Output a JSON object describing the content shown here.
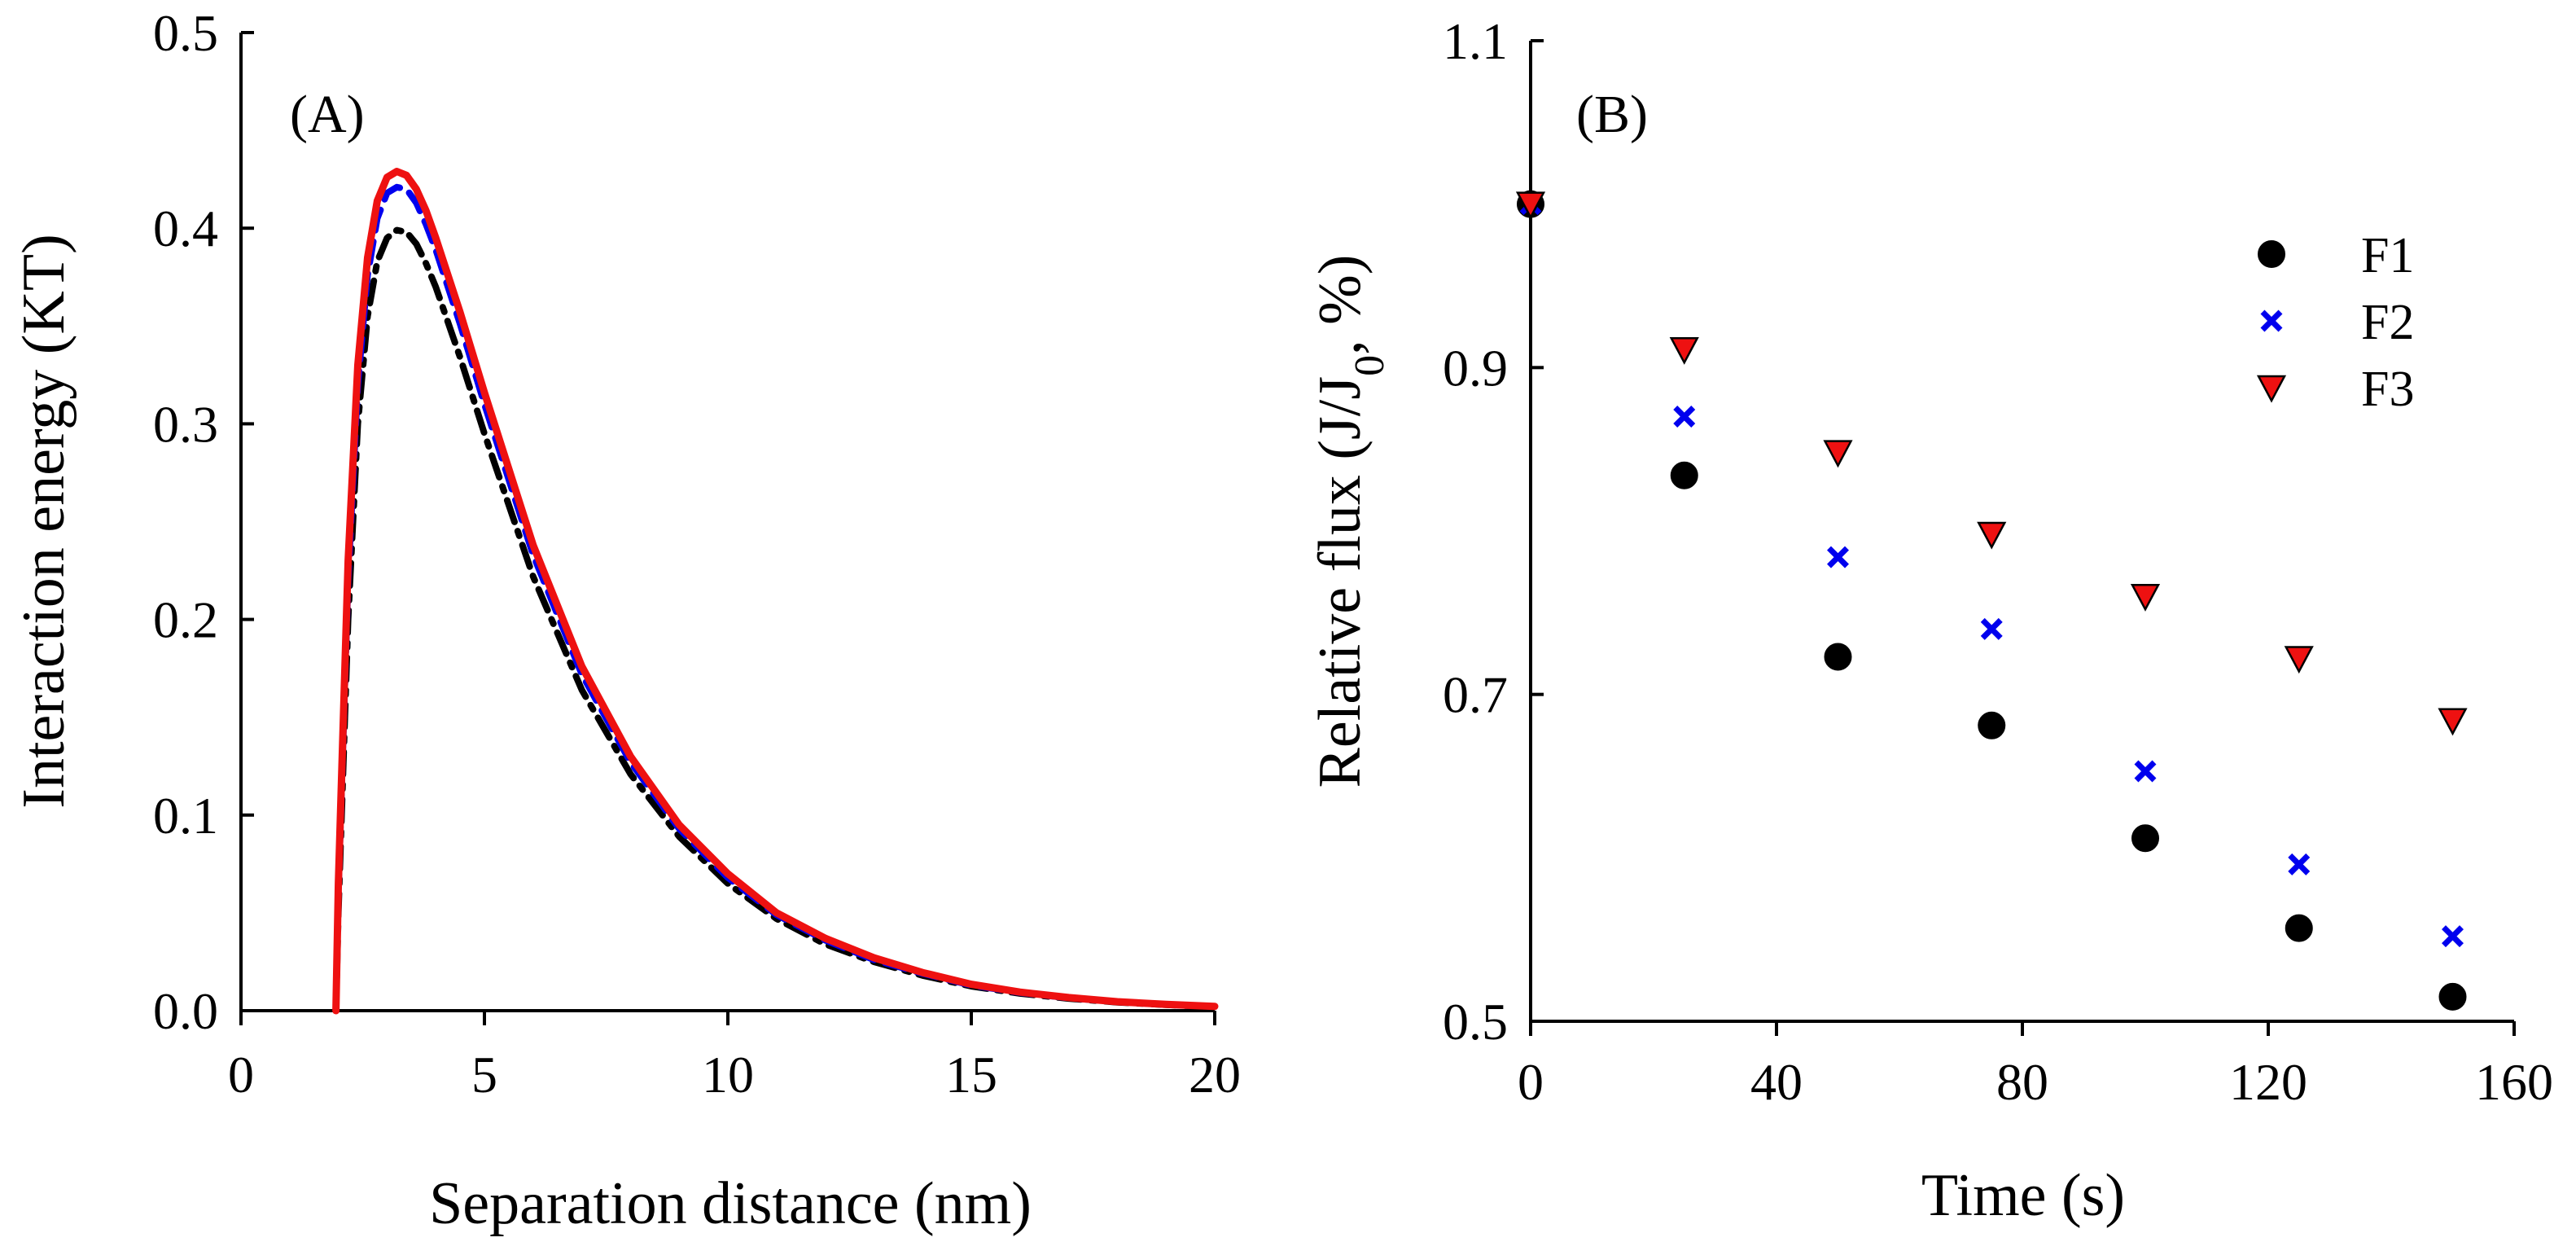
{
  "colors": {
    "F1": "#000000",
    "F2": "#0000ee",
    "F3": "#ee1111",
    "axis": "#000000"
  },
  "chart_data": [
    {
      "type": "line",
      "panel_label": "(A)",
      "xlabel": "Separation distance (nm)",
      "ylabel": "Interaction energy (KT)",
      "xlim": [
        0,
        20
      ],
      "ylim": [
        0,
        0.5
      ],
      "x_ticks": [
        "0",
        "5",
        "10",
        "15",
        "20"
      ],
      "y_ticks": [
        "0.0",
        "0.1",
        "0.2",
        "0.3",
        "0.4",
        "0.5"
      ],
      "grid": false,
      "legend": null,
      "series": [
        {
          "style": "dash-dot",
          "color_key": "F1",
          "x": [
            1.95,
            2.0,
            2.2,
            2.4,
            2.6,
            2.8,
            3.0,
            3.2,
            3.4,
            3.6,
            3.8,
            4.0,
            4.5,
            5.0,
            6.0,
            7.0,
            8.0,
            9.0,
            10.0,
            11.0,
            12.0,
            13.0,
            14.0,
            15.0,
            16.0,
            17.0,
            18.0,
            19.0,
            20.0
          ],
          "y": [
            0.0,
            0.05,
            0.2,
            0.3,
            0.355,
            0.383,
            0.395,
            0.399,
            0.398,
            0.392,
            0.382,
            0.37,
            0.334,
            0.295,
            0.222,
            0.164,
            0.121,
            0.089,
            0.065,
            0.047,
            0.034,
            0.025,
            0.018,
            0.0125,
            0.0088,
            0.0062,
            0.0043,
            0.003,
            0.002
          ]
        },
        {
          "style": "dashed",
          "color_key": "F2",
          "x": [
            1.95,
            2.0,
            2.2,
            2.4,
            2.6,
            2.8,
            3.0,
            3.2,
            3.4,
            3.6,
            3.8,
            4.0,
            4.5,
            5.0,
            6.0,
            7.0,
            8.0,
            9.0,
            10.0,
            11.0,
            12.0,
            13.0,
            14.0,
            15.0,
            16.0,
            17.0,
            18.0,
            19.0,
            20.0
          ],
          "y": [
            0.0,
            0.06,
            0.22,
            0.32,
            0.376,
            0.405,
            0.418,
            0.421,
            0.42,
            0.413,
            0.402,
            0.389,
            0.351,
            0.31,
            0.233,
            0.172,
            0.127,
            0.093,
            0.068,
            0.049,
            0.036,
            0.026,
            0.019,
            0.013,
            0.0092,
            0.0065,
            0.0045,
            0.0031,
            0.0021
          ]
        },
        {
          "style": "solid",
          "color_key": "F3",
          "x": [
            1.95,
            2.0,
            2.2,
            2.4,
            2.6,
            2.8,
            3.0,
            3.2,
            3.4,
            3.6,
            3.8,
            4.0,
            4.5,
            5.0,
            6.0,
            7.0,
            8.0,
            9.0,
            10.0,
            11.0,
            12.0,
            13.0,
            14.0,
            15.0,
            16.0,
            17.0,
            18.0,
            19.0,
            20.0
          ],
          "y": [
            0.0,
            0.065,
            0.23,
            0.33,
            0.385,
            0.414,
            0.426,
            0.429,
            0.427,
            0.42,
            0.409,
            0.395,
            0.357,
            0.316,
            0.238,
            0.176,
            0.13,
            0.095,
            0.07,
            0.05,
            0.037,
            0.027,
            0.0195,
            0.0135,
            0.0095,
            0.0067,
            0.0046,
            0.0032,
            0.0022
          ]
        }
      ]
    },
    {
      "type": "scatter",
      "panel_label": "(B)",
      "xlabel": "Time (s)",
      "ylabel_parts": {
        "main": "Relative flux (J/J",
        "sub": "0",
        "tail": ", %)"
      },
      "xlim": [
        0,
        160
      ],
      "ylim": [
        0.5,
        1.1
      ],
      "x_ticks": [
        "0",
        "40",
        "80",
        "120",
        "160"
      ],
      "y_ticks": [
        "0.5",
        "0.7",
        "0.9",
        "1.1"
      ],
      "grid": false,
      "legend": "top-right",
      "x": [
        0,
        25,
        50,
        75,
        100,
        125,
        150
      ],
      "series": [
        {
          "name": "F1",
          "marker": "circle",
          "color_key": "F1",
          "y": [
            1.0,
            0.834,
            0.723,
            0.681,
            0.612,
            0.557,
            0.515
          ]
        },
        {
          "name": "F2",
          "marker": "x",
          "color_key": "F2",
          "y": [
            1.0,
            0.87,
            0.784,
            0.74,
            0.653,
            0.596,
            0.552
          ]
        },
        {
          "name": "F3",
          "marker": "triangle-down",
          "color_key": "F3",
          "y": [
            1.0,
            0.911,
            0.848,
            0.798,
            0.76,
            0.722,
            0.684
          ]
        }
      ]
    }
  ]
}
